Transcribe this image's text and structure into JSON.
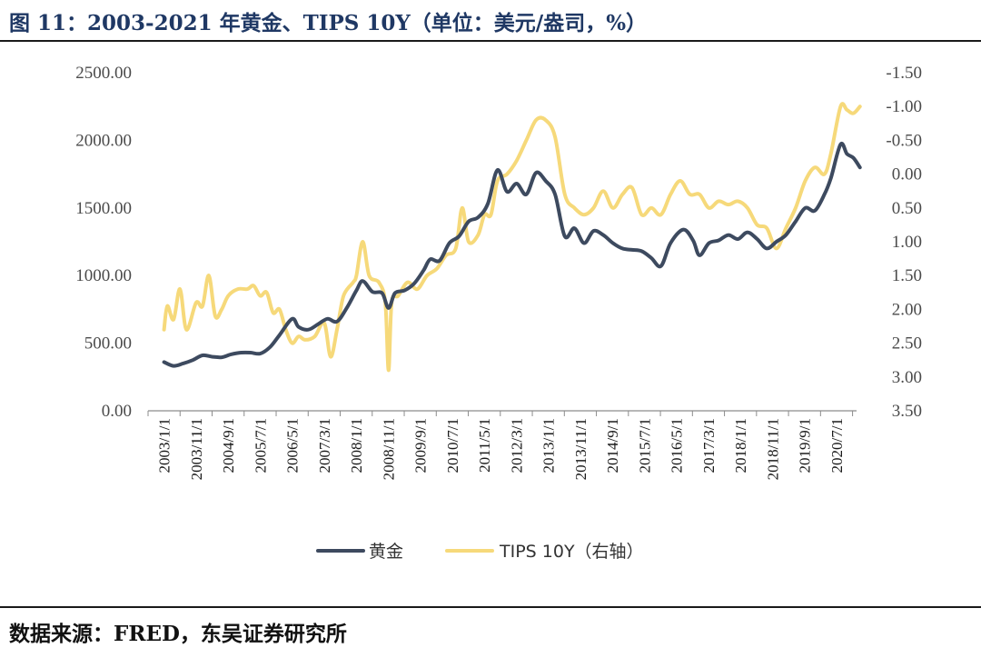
{
  "header": {
    "title": "图 11：2003-2021 年黄金、TIPS 10Y（单位：美元/盎司，%）"
  },
  "footer": {
    "source": "数据来源：FRED，东吴证券研究所"
  },
  "colors": {
    "gold": "#3d4a5f",
    "tips": "#f6d97a",
    "axis": "#8c8c8c",
    "text": "#4a4a4a"
  },
  "chart_data": {
    "type": "line",
    "title": "",
    "x_tick_labels": [
      "2003/1/1",
      "2003/11/1",
      "2004/9/1",
      "2005/7/1",
      "2006/5/1",
      "2007/3/1",
      "2008/1/1",
      "2008/11/1",
      "2009/9/1",
      "2010/7/1",
      "2011/5/1",
      "2012/3/1",
      "2013/1/1",
      "2013/11/1",
      "2014/9/1",
      "2015/7/1",
      "2016/5/1",
      "2017/3/1",
      "2018/1/1",
      "2018/11/1",
      "2019/9/1",
      "2020/7/1"
    ],
    "y_left": {
      "min": 0,
      "max": 2500,
      "ticks": [
        "2500.00",
        "2000.00",
        "1500.00",
        "1000.00",
        "500.00",
        "0.00"
      ]
    },
    "y_right": {
      "min": -1.5,
      "max": 3.5,
      "inverted": true,
      "ticks": [
        "-1.50",
        "-1.00",
        "-0.50",
        "0.00",
        "0.50",
        "1.00",
        "1.50",
        "2.00",
        "2.50",
        "3.00",
        "3.50"
      ]
    },
    "legend": {
      "position": "bottom"
    },
    "series": [
      {
        "name": "黄金",
        "axis": "left",
        "points": [
          [
            "2003/1/1",
            360
          ],
          [
            "2003/4/1",
            332
          ],
          [
            "2003/7/1",
            350
          ],
          [
            "2003/10/1",
            375
          ],
          [
            "2004/1/1",
            410
          ],
          [
            "2004/4/1",
            400
          ],
          [
            "2004/7/1",
            396
          ],
          [
            "2004/10/1",
            418
          ],
          [
            "2005/1/1",
            430
          ],
          [
            "2005/4/1",
            430
          ],
          [
            "2005/7/1",
            423
          ],
          [
            "2005/10/1",
            470
          ],
          [
            "2006/1/1",
            560
          ],
          [
            "2006/5/1",
            680
          ],
          [
            "2006/7/1",
            620
          ],
          [
            "2006/10/1",
            600
          ],
          [
            "2007/1/1",
            640
          ],
          [
            "2007/4/1",
            680
          ],
          [
            "2007/7/1",
            660
          ],
          [
            "2007/10/1",
            760
          ],
          [
            "2008/1/1",
            890
          ],
          [
            "2008/3/1",
            960
          ],
          [
            "2008/6/1",
            880
          ],
          [
            "2008/9/1",
            870
          ],
          [
            "2008/11/1",
            760
          ],
          [
            "2009/1/1",
            870
          ],
          [
            "2009/4/1",
            890
          ],
          [
            "2009/7/1",
            940
          ],
          [
            "2009/10/1",
            1040
          ],
          [
            "2009/12/1",
            1120
          ],
          [
            "2010/3/1",
            1110
          ],
          [
            "2010/6/1",
            1240
          ],
          [
            "2010/9/1",
            1290
          ],
          [
            "2010/12/1",
            1400
          ],
          [
            "2011/3/1",
            1430
          ],
          [
            "2011/6/1",
            1530
          ],
          [
            "2011/9/1",
            1780
          ],
          [
            "2011/12/1",
            1620
          ],
          [
            "2012/3/1",
            1680
          ],
          [
            "2012/6/1",
            1600
          ],
          [
            "2012/9/1",
            1760
          ],
          [
            "2012/12/1",
            1700
          ],
          [
            "2013/3/1",
            1600
          ],
          [
            "2013/6/1",
            1290
          ],
          [
            "2013/9/1",
            1350
          ],
          [
            "2013/12/1",
            1240
          ],
          [
            "2014/3/1",
            1330
          ],
          [
            "2014/6/1",
            1300
          ],
          [
            "2014/9/1",
            1240
          ],
          [
            "2014/12/1",
            1200
          ],
          [
            "2015/3/1",
            1190
          ],
          [
            "2015/6/1",
            1180
          ],
          [
            "2015/9/1",
            1130
          ],
          [
            "2015/12/1",
            1070
          ],
          [
            "2016/3/1",
            1240
          ],
          [
            "2016/7/1",
            1340
          ],
          [
            "2016/10/1",
            1260
          ],
          [
            "2016/12/1",
            1150
          ],
          [
            "2017/3/1",
            1240
          ],
          [
            "2017/6/1",
            1260
          ],
          [
            "2017/9/1",
            1300
          ],
          [
            "2017/12/1",
            1270
          ],
          [
            "2018/3/1",
            1320
          ],
          [
            "2018/6/1",
            1270
          ],
          [
            "2018/9/1",
            1200
          ],
          [
            "2018/12/1",
            1250
          ],
          [
            "2019/3/1",
            1300
          ],
          [
            "2019/6/1",
            1400
          ],
          [
            "2019/9/1",
            1500
          ],
          [
            "2019/12/1",
            1480
          ],
          [
            "2020/3/1",
            1600
          ],
          [
            "2020/5/1",
            1720
          ],
          [
            "2020/8/1",
            1970
          ],
          [
            "2020/10/1",
            1900
          ],
          [
            "2020/12/1",
            1870
          ],
          [
            "2021/2/1",
            1800
          ]
        ]
      },
      {
        "name": "TIPS 10Y（右轴）",
        "axis": "right",
        "points": [
          [
            "2003/1/1",
            2.3
          ],
          [
            "2003/2/1",
            1.95
          ],
          [
            "2003/4/1",
            2.15
          ],
          [
            "2003/6/1",
            1.7
          ],
          [
            "2003/8/1",
            2.3
          ],
          [
            "2003/11/1",
            1.9
          ],
          [
            "2004/1/1",
            1.95
          ],
          [
            "2004/3/1",
            1.5
          ],
          [
            "2004/5/1",
            2.1
          ],
          [
            "2004/7/1",
            2.0
          ],
          [
            "2004/9/1",
            1.8
          ],
          [
            "2004/12/1",
            1.7
          ],
          [
            "2005/3/1",
            1.7
          ],
          [
            "2005/5/1",
            1.65
          ],
          [
            "2005/7/1",
            1.8
          ],
          [
            "2005/9/1",
            1.75
          ],
          [
            "2005/11/1",
            2.05
          ],
          [
            "2006/1/1",
            2.0
          ],
          [
            "2006/3/1",
            2.3
          ],
          [
            "2006/5/1",
            2.5
          ],
          [
            "2006/7/1",
            2.4
          ],
          [
            "2006/9/1",
            2.45
          ],
          [
            "2006/12/1",
            2.4
          ],
          [
            "2007/3/1",
            2.2
          ],
          [
            "2007/5/1",
            2.7
          ],
          [
            "2007/7/1",
            2.3
          ],
          [
            "2007/9/1",
            1.8
          ],
          [
            "2007/12/1",
            1.6
          ],
          [
            "2008/1/1",
            1.5
          ],
          [
            "2008/3/1",
            1.0
          ],
          [
            "2008/5/1",
            1.5
          ],
          [
            "2008/8/1",
            1.6
          ],
          [
            "2008/10/1",
            1.9
          ],
          [
            "2008/11/1",
            2.9
          ],
          [
            "2008/12/1",
            1.9
          ],
          [
            "2009/2/1",
            1.8
          ],
          [
            "2009/5/1",
            1.6
          ],
          [
            "2009/8/1",
            1.7
          ],
          [
            "2009/11/1",
            1.5
          ],
          [
            "2010/2/1",
            1.4
          ],
          [
            "2010/5/1",
            1.2
          ],
          [
            "2010/8/1",
            1.1
          ],
          [
            "2010/10/1",
            0.5
          ],
          [
            "2010/12/1",
            1.0
          ],
          [
            "2011/3/1",
            0.9
          ],
          [
            "2011/5/1",
            0.6
          ],
          [
            "2011/7/1",
            0.6
          ],
          [
            "2011/9/1",
            0.1
          ],
          [
            "2011/12/1",
            0.0
          ],
          [
            "2012/3/1",
            -0.2
          ],
          [
            "2012/6/1",
            -0.5
          ],
          [
            "2012/9/1",
            -0.8
          ],
          [
            "2012/12/1",
            -0.8
          ],
          [
            "2013/3/1",
            -0.55
          ],
          [
            "2013/6/1",
            0.3
          ],
          [
            "2013/9/1",
            0.5
          ],
          [
            "2013/12/1",
            0.6
          ],
          [
            "2014/3/1",
            0.5
          ],
          [
            "2014/6/1",
            0.25
          ],
          [
            "2014/9/1",
            0.5
          ],
          [
            "2014/12/1",
            0.3
          ],
          [
            "2015/3/1",
            0.2
          ],
          [
            "2015/6/1",
            0.6
          ],
          [
            "2015/9/1",
            0.5
          ],
          [
            "2015/12/1",
            0.6
          ],
          [
            "2016/3/1",
            0.3
          ],
          [
            "2016/6/1",
            0.1
          ],
          [
            "2016/9/1",
            0.3
          ],
          [
            "2016/12/1",
            0.3
          ],
          [
            "2017/3/1",
            0.5
          ],
          [
            "2017/6/1",
            0.4
          ],
          [
            "2017/9/1",
            0.45
          ],
          [
            "2017/12/1",
            0.4
          ],
          [
            "2018/3/1",
            0.5
          ],
          [
            "2018/6/1",
            0.75
          ],
          [
            "2018/9/1",
            0.8
          ],
          [
            "2018/12/1",
            1.1
          ],
          [
            "2019/3/1",
            0.8
          ],
          [
            "2019/6/1",
            0.5
          ],
          [
            "2019/9/1",
            0.1
          ],
          [
            "2019/12/1",
            -0.1
          ],
          [
            "2020/3/1",
            0.0
          ],
          [
            "2020/5/1",
            -0.3
          ],
          [
            "2020/8/1",
            -1.0
          ],
          [
            "2020/10/1",
            -0.95
          ],
          [
            "2020/12/1",
            -0.9
          ],
          [
            "2021/2/1",
            -1.0
          ]
        ]
      }
    ]
  }
}
